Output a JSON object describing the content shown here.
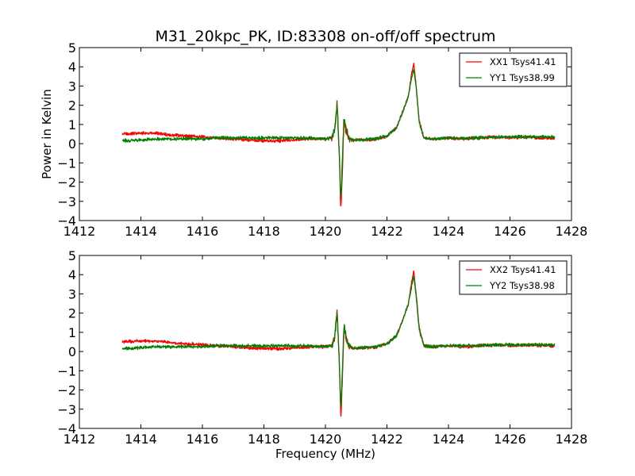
{
  "chart_data": [
    {
      "type": "line",
      "title": "M31_20kpc_PK, ID:83308 on-off/off spectrum",
      "xlabel": "",
      "ylabel": "Power in Kelvin",
      "xlim": [
        1412,
        1428
      ],
      "ylim": [
        -4,
        5
      ],
      "xticks": [
        "1412",
        "1414",
        "1416",
        "1418",
        "1420",
        "1422",
        "1424",
        "1426",
        "1428"
      ],
      "yticks": [
        "−4",
        "−3",
        "−2",
        "−1",
        "0",
        "1",
        "2",
        "3",
        "4",
        "5"
      ],
      "grid": false,
      "legend_position": "upper right",
      "series": [
        {
          "name": "XX1 Tsys41.41",
          "color": "#ff0000",
          "x": [
            1413.4,
            1414.0,
            1414.5,
            1415.0,
            1415.5,
            1416.0,
            1416.5,
            1417.0,
            1417.5,
            1418.0,
            1418.5,
            1419.0,
            1419.5,
            1420.0,
            1420.2,
            1420.3,
            1420.38,
            1420.45,
            1420.5,
            1420.55,
            1420.6,
            1420.65,
            1420.75,
            1420.9,
            1421.2,
            1421.6,
            1422.0,
            1422.3,
            1422.5,
            1422.7,
            1422.8,
            1422.87,
            1422.95,
            1423.05,
            1423.2,
            1423.5,
            1424.0,
            1424.5,
            1425.0,
            1425.5,
            1426.0,
            1426.5,
            1427.0,
            1427.45
          ],
          "y": [
            0.5,
            0.55,
            0.55,
            0.45,
            0.4,
            0.35,
            0.3,
            0.25,
            0.2,
            0.15,
            0.15,
            0.2,
            0.25,
            0.25,
            0.3,
            0.7,
            2.2,
            -0.5,
            -3.5,
            -1.5,
            1.2,
            0.8,
            0.3,
            0.15,
            0.2,
            0.2,
            0.4,
            0.8,
            1.6,
            2.5,
            3.6,
            4.2,
            3.0,
            1.2,
            0.3,
            0.25,
            0.3,
            0.25,
            0.3,
            0.35,
            0.3,
            0.35,
            0.3,
            0.3
          ]
        },
        {
          "name": "YY1 Tsys38.99",
          "color": "#008000",
          "x": [
            1413.4,
            1414.0,
            1414.5,
            1415.0,
            1415.5,
            1416.0,
            1416.5,
            1417.0,
            1417.5,
            1418.0,
            1418.5,
            1419.0,
            1419.5,
            1420.0,
            1420.2,
            1420.3,
            1420.38,
            1420.45,
            1420.5,
            1420.55,
            1420.6,
            1420.65,
            1420.75,
            1420.9,
            1421.2,
            1421.6,
            1422.0,
            1422.3,
            1422.5,
            1422.7,
            1422.8,
            1422.87,
            1422.95,
            1423.05,
            1423.2,
            1423.5,
            1424.0,
            1424.5,
            1425.0,
            1425.5,
            1426.0,
            1426.5,
            1427.0,
            1427.45
          ],
          "y": [
            0.15,
            0.2,
            0.25,
            0.25,
            0.25,
            0.25,
            0.3,
            0.3,
            0.3,
            0.3,
            0.3,
            0.3,
            0.3,
            0.25,
            0.3,
            0.7,
            2.0,
            -0.5,
            -3.0,
            -1.0,
            1.4,
            0.9,
            0.3,
            0.2,
            0.2,
            0.25,
            0.4,
            0.8,
            1.6,
            2.5,
            3.4,
            3.9,
            2.9,
            1.1,
            0.3,
            0.25,
            0.3,
            0.3,
            0.3,
            0.35,
            0.35,
            0.35,
            0.35,
            0.35
          ]
        }
      ]
    },
    {
      "type": "line",
      "title": "",
      "xlabel": "Frequency (MHz)",
      "ylabel": "",
      "xlim": [
        1412,
        1428
      ],
      "ylim": [
        -4,
        5
      ],
      "xticks": [
        "1412",
        "1414",
        "1416",
        "1418",
        "1420",
        "1422",
        "1424",
        "1426",
        "1428"
      ],
      "yticks": [
        "−4",
        "−3",
        "−2",
        "−1",
        "0",
        "1",
        "2",
        "3",
        "4",
        "5"
      ],
      "grid": false,
      "legend_position": "upper right",
      "series": [
        {
          "name": "XX2 Tsys41.41",
          "color": "#ff0000",
          "x": [
            1413.4,
            1414.0,
            1414.5,
            1415.0,
            1415.5,
            1416.0,
            1416.5,
            1417.0,
            1417.5,
            1418.0,
            1418.5,
            1419.0,
            1419.5,
            1420.0,
            1420.2,
            1420.3,
            1420.38,
            1420.45,
            1420.5,
            1420.55,
            1420.6,
            1420.65,
            1420.75,
            1420.9,
            1421.2,
            1421.6,
            1422.0,
            1422.3,
            1422.5,
            1422.7,
            1422.8,
            1422.87,
            1422.95,
            1423.05,
            1423.2,
            1423.5,
            1424.0,
            1424.5,
            1425.0,
            1425.5,
            1426.0,
            1426.5,
            1427.0,
            1427.45
          ],
          "y": [
            0.5,
            0.55,
            0.55,
            0.45,
            0.4,
            0.35,
            0.3,
            0.25,
            0.2,
            0.15,
            0.15,
            0.2,
            0.25,
            0.25,
            0.3,
            0.7,
            2.2,
            -0.5,
            -3.5,
            -1.5,
            1.2,
            0.8,
            0.3,
            0.15,
            0.2,
            0.2,
            0.4,
            0.8,
            1.6,
            2.5,
            3.6,
            4.2,
            3.0,
            1.2,
            0.3,
            0.25,
            0.3,
            0.25,
            0.3,
            0.35,
            0.3,
            0.35,
            0.3,
            0.3
          ]
        },
        {
          "name": "YY2 Tsys38.98",
          "color": "#008000",
          "x": [
            1413.4,
            1414.0,
            1414.5,
            1415.0,
            1415.5,
            1416.0,
            1416.5,
            1417.0,
            1417.5,
            1418.0,
            1418.5,
            1419.0,
            1419.5,
            1420.0,
            1420.2,
            1420.3,
            1420.38,
            1420.45,
            1420.5,
            1420.55,
            1420.6,
            1420.65,
            1420.75,
            1420.9,
            1421.2,
            1421.6,
            1422.0,
            1422.3,
            1422.5,
            1422.7,
            1422.8,
            1422.87,
            1422.95,
            1423.05,
            1423.2,
            1423.5,
            1424.0,
            1424.5,
            1425.0,
            1425.5,
            1426.0,
            1426.5,
            1427.0,
            1427.45
          ],
          "y": [
            0.15,
            0.2,
            0.25,
            0.25,
            0.25,
            0.25,
            0.3,
            0.3,
            0.3,
            0.3,
            0.3,
            0.3,
            0.3,
            0.25,
            0.3,
            0.7,
            2.0,
            -0.5,
            -3.0,
            -1.0,
            1.4,
            0.9,
            0.3,
            0.2,
            0.2,
            0.25,
            0.4,
            0.8,
            1.6,
            2.5,
            3.4,
            3.9,
            2.9,
            1.1,
            0.3,
            0.25,
            0.3,
            0.3,
            0.3,
            0.35,
            0.35,
            0.35,
            0.35,
            0.35
          ]
        }
      ]
    }
  ]
}
